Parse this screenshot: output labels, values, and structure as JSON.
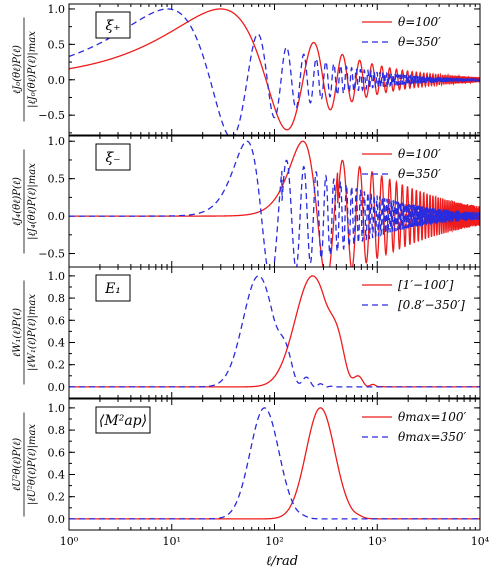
{
  "chart_data": {
    "type": "line",
    "x_axis": {
      "label": "ℓ/rad",
      "scale": "log",
      "xlim": [
        1,
        10000
      ],
      "major_ticks": [
        1,
        10,
        100,
        1000,
        10000
      ],
      "tick_labels": [
        "10⁰",
        "10¹",
        "10²",
        "10³",
        "10⁴"
      ]
    },
    "colors": {
      "red": "#ee1c1c",
      "blue": "#2a2adf"
    },
    "panels": [
      {
        "label": "ξ₊",
        "ylabel_top": "ℓJ₀(θℓ)P(ℓ)",
        "ylabel_bottom": "|ℓJ₀(θℓ)P(ℓ)|max",
        "ylim": [
          -0.78,
          1.07
        ],
        "yticks": [
          -0.5,
          0.0,
          0.5,
          1.0
        ],
        "ytick_labels": [
          "−0.5",
          "0.0",
          "0.5",
          "1.0"
        ],
        "series": [
          {
            "name": "θ=100′",
            "color": "red",
            "style": "solid",
            "kind": "osc",
            "order": 0,
            "theta": 0.0291,
            "peak": 25,
            "amp": 0.33
          },
          {
            "name": "θ=350′",
            "color": "blue",
            "style": "dashed",
            "kind": "osc",
            "order": 0,
            "theta": 0.1018,
            "peak": 11,
            "amp": 0.33
          }
        ]
      },
      {
        "label": "ξ₋",
        "ylabel_top": "ℓJ₄(θℓ)P(ℓ)",
        "ylabel_bottom": "|ℓJ₄(θℓ)P(ℓ)|max",
        "ylim": [
          -0.68,
          1.07
        ],
        "yticks": [
          -0.5,
          0.0,
          0.5,
          1.0
        ],
        "ytick_labels": [
          "−0.5",
          "0.0",
          "0.5",
          "1.0"
        ],
        "series": [
          {
            "name": "θ=100′",
            "color": "red",
            "style": "solid",
            "kind": "osc",
            "order": 4,
            "theta": 0.0291,
            "peak": 175,
            "amp": 0.33
          },
          {
            "name": "θ=350′",
            "color": "blue",
            "style": "dashed",
            "kind": "osc",
            "order": 4,
            "theta": 0.1018,
            "peak": 50,
            "amp": 0.33
          }
        ]
      },
      {
        "label": "E₁",
        "ylabel_top": "ℓW₁(ℓ)P(ℓ)",
        "ylabel_bottom": "|ℓW₁(ℓ)P(ℓ)|max",
        "ylim": [
          -0.1,
          1.08
        ],
        "yticks": [
          0.0,
          0.2,
          0.4,
          0.6,
          0.8,
          1.0
        ],
        "ytick_labels": [
          "0.0",
          "0.2",
          "0.4",
          "0.6",
          "0.8",
          "1.0"
        ],
        "series": [
          {
            "name": "[1′−100′]",
            "color": "red",
            "style": "solid",
            "kind": "win",
            "peak": 235,
            "width": 0.17,
            "wiggle": 0.55,
            "period": 500,
            "range": [
              300,
              1200
            ],
            "wdecay": 1.1
          },
          {
            "name": "[0.8′−350′]",
            "color": "blue",
            "style": "dashed",
            "kind": "win",
            "peak": 70,
            "width": 0.15,
            "wiggle": 0.55,
            "period": 150,
            "range": [
              95,
              400
            ],
            "wdecay": 1.1
          }
        ]
      },
      {
        "label": "⟨M²ap⟩",
        "ylabel_top": "ℓU²θ(ℓ)P(ℓ)",
        "ylabel_bottom": "|ℓU²θ(ℓ)P(ℓ)|max",
        "ylim": [
          -0.1,
          1.08
        ],
        "yticks": [
          0.0,
          0.2,
          0.4,
          0.6,
          0.8,
          1.0
        ],
        "ytick_labels": [
          "0.0",
          "0.2",
          "0.4",
          "0.6",
          "0.8",
          "1.0"
        ],
        "series": [
          {
            "name": "θmax=100′",
            "color": "red",
            "style": "solid",
            "kind": "win",
            "peak": 280,
            "width": 0.14,
            "wiggle": 0.06,
            "period": 600,
            "range": [
              560,
              900
            ],
            "wdecay": 1.0
          },
          {
            "name": "θmax=350′",
            "color": "blue",
            "style": "dashed",
            "kind": "win",
            "peak": 80,
            "width": 0.14,
            "wiggle": 0.06,
            "period": 170,
            "range": [
              160,
              260
            ],
            "wdecay": 1.0
          }
        ]
      }
    ]
  }
}
